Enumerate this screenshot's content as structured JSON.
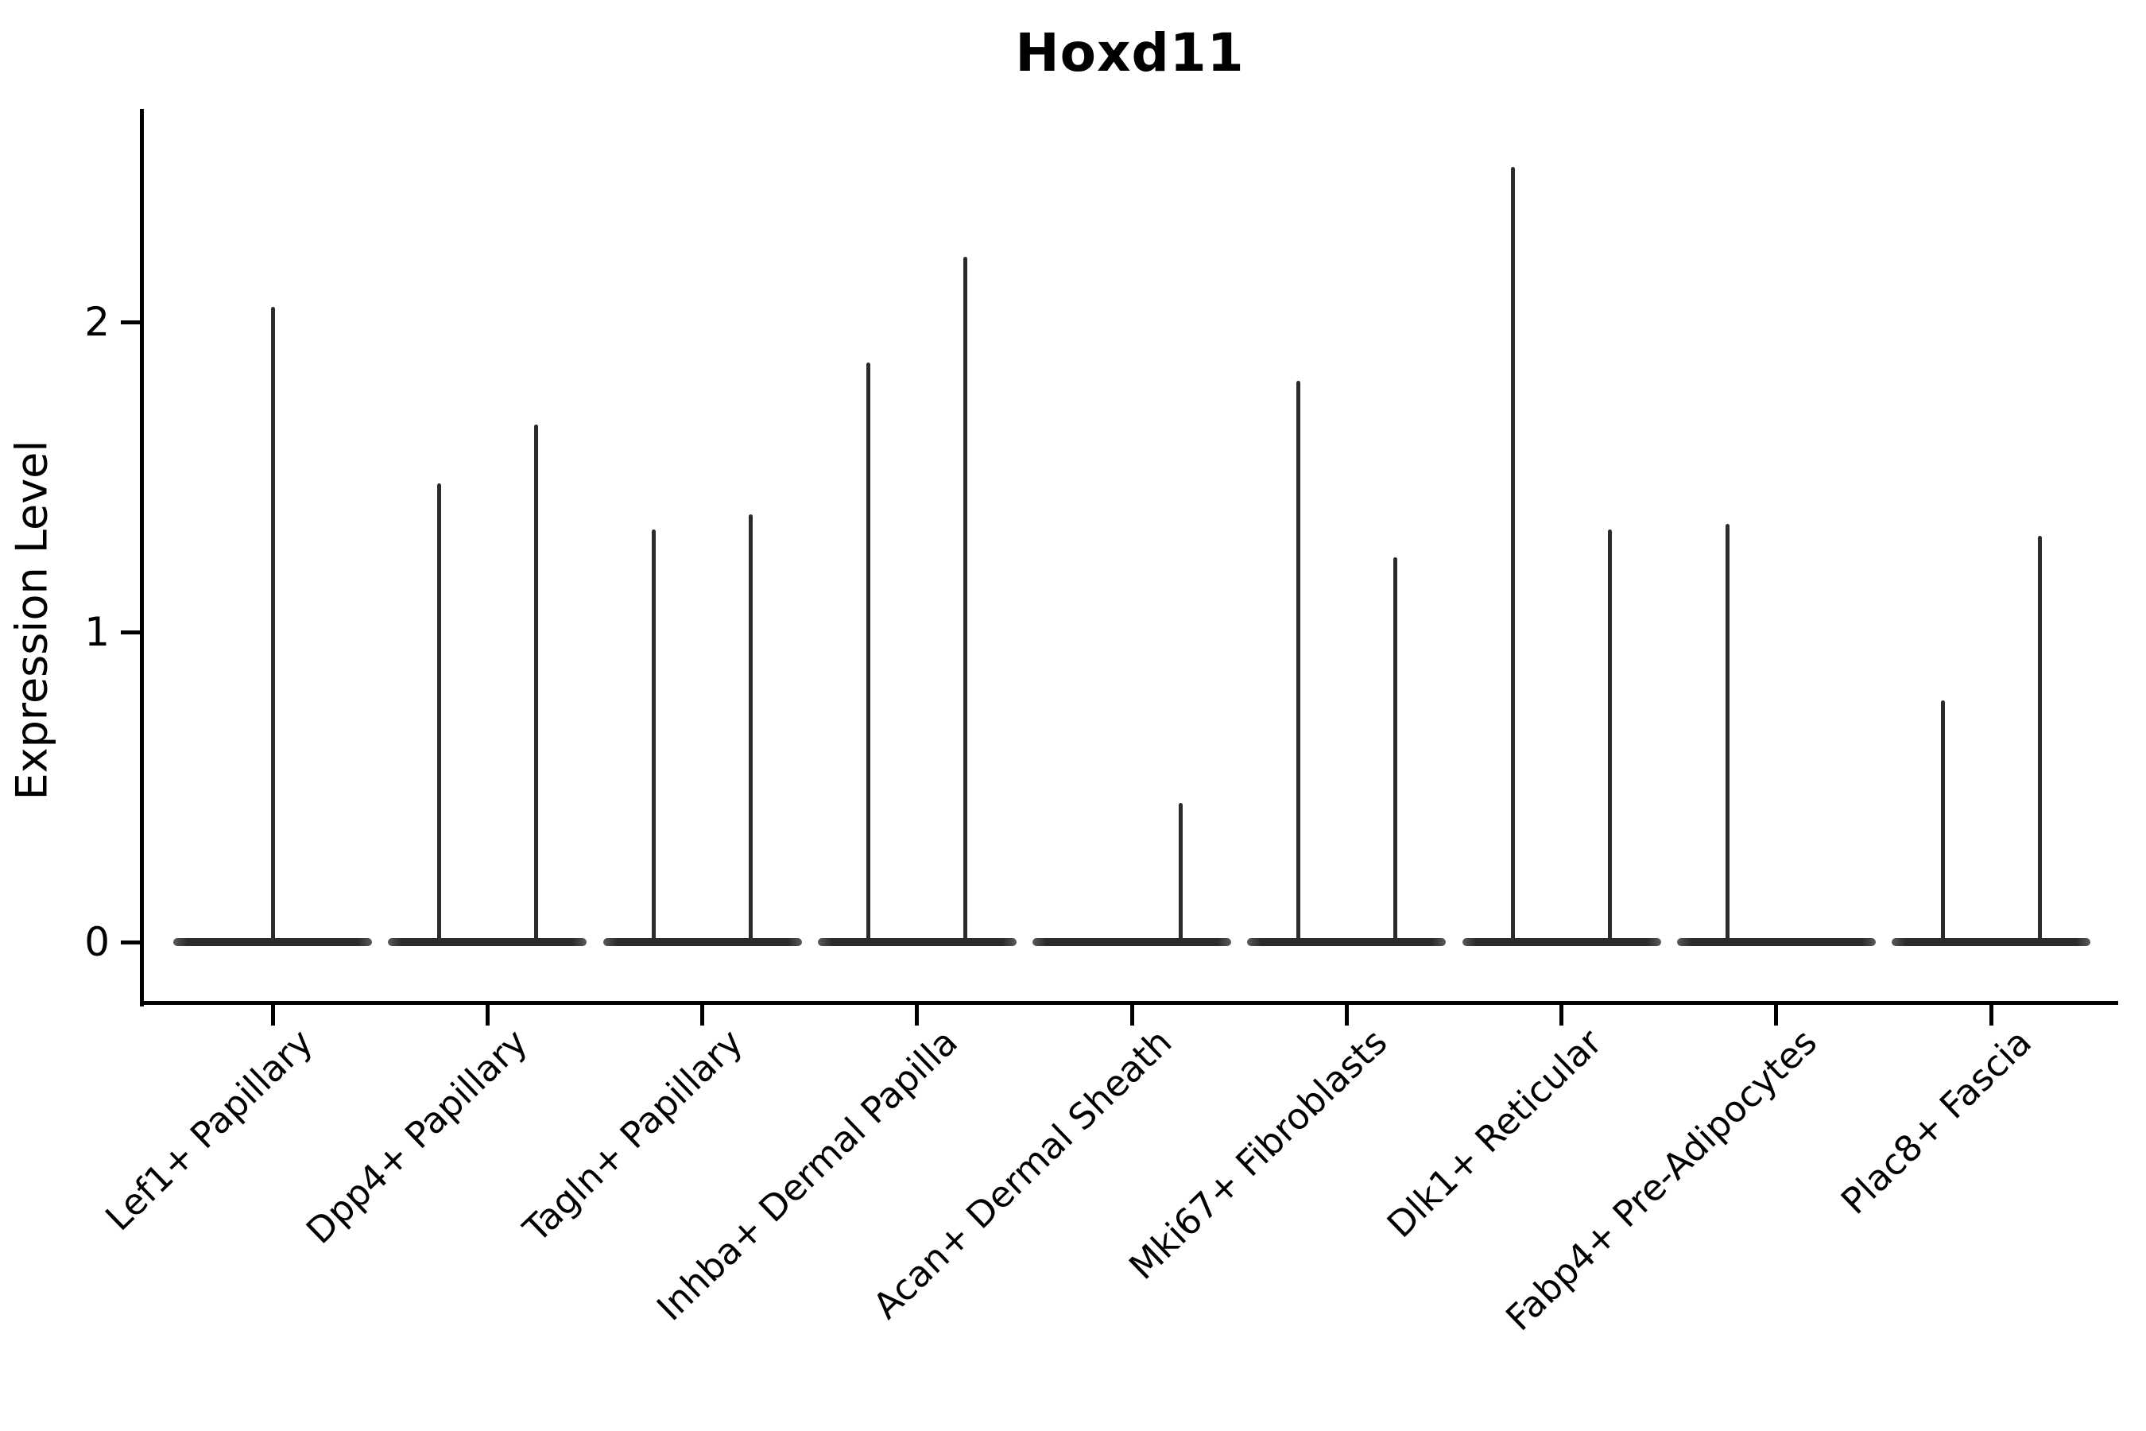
{
  "chart_data": {
    "type": "violin",
    "title": "Hoxd11",
    "xlabel": "",
    "ylabel": "Expression Level",
    "yticks": [
      0,
      1,
      2
    ],
    "ylim": [
      0,
      2.69
    ],
    "grid": false,
    "legend": false,
    "categories": [
      "Lef1+ Papillary",
      "Dpp4+ Papillary",
      "Tagln+ Papillary",
      "Inhba+ Dermal Papilla",
      "Acan+ Dermal Sheath",
      "Mki67+ Fibroblasts",
      "Dlk1+ Reticular",
      "Fabp4+ Pre-Adipocytes",
      "Plac8+ Fascia"
    ],
    "baseline_value": 0,
    "groups": [
      {
        "category": "Lef1+ Papillary",
        "violins": [
          {
            "pos": "center",
            "max_expression": 2.05
          }
        ]
      },
      {
        "category": "Dpp4+ Papillary",
        "violins": [
          {
            "pos": "left",
            "max_expression": 1.48
          },
          {
            "pos": "right",
            "max_expression": 1.67
          }
        ]
      },
      {
        "category": "Tagln+ Papillary",
        "violins": [
          {
            "pos": "left",
            "max_expression": 1.33
          },
          {
            "pos": "right",
            "max_expression": 1.38
          }
        ]
      },
      {
        "category": "Inhba+ Dermal Papilla",
        "violins": [
          {
            "pos": "left",
            "max_expression": 1.87
          },
          {
            "pos": "right",
            "max_expression": 2.21
          }
        ]
      },
      {
        "category": "Acan+ Dermal Sheath",
        "violins": [
          {
            "pos": "right",
            "max_expression": 0.45
          }
        ]
      },
      {
        "category": "Mki67+ Fibroblasts",
        "violins": [
          {
            "pos": "left",
            "max_expression": 1.81
          },
          {
            "pos": "right",
            "max_expression": 1.24
          }
        ]
      },
      {
        "category": "Dlk1+ Reticular",
        "violins": [
          {
            "pos": "left",
            "max_expression": 2.5
          },
          {
            "pos": "right",
            "max_expression": 1.33
          }
        ]
      },
      {
        "category": "Fabp4+ Pre-Adipocytes",
        "violins": [
          {
            "pos": "left",
            "max_expression": 1.35
          }
        ]
      },
      {
        "category": "Plac8+ Fascia",
        "violins": [
          {
            "pos": "left",
            "max_expression": 0.78
          },
          {
            "pos": "right",
            "max_expression": 1.31
          }
        ]
      }
    ],
    "colors": {
      "violin": "#2b2b2b",
      "axis": "#000000",
      "text": "#000000",
      "background": "#ffffff"
    }
  }
}
